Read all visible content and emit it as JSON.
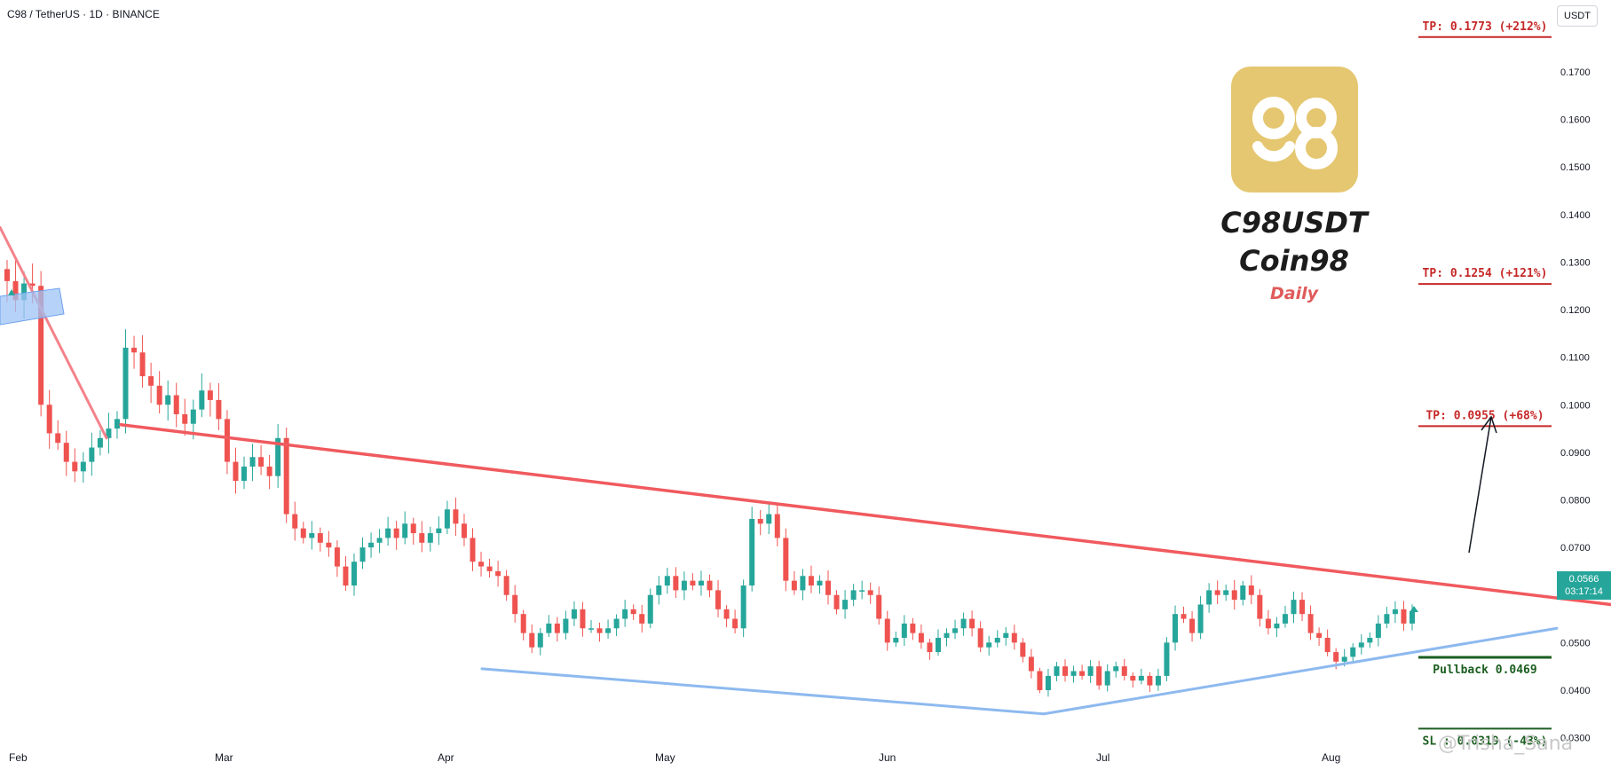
{
  "header": {
    "symbol_line": "C98 / TetherUS · 1D · BINANCE",
    "unit": "USDT"
  },
  "overlay": {
    "ticker": "C98USDT",
    "name": "Coin98",
    "timeframe": "Daily",
    "watermark": "@Trisha_Sana",
    "logo_color": "#e5c771"
  },
  "price_badge": {
    "price": "0.0566",
    "countdown": "03:17:14"
  },
  "chart_data": {
    "type": "candlestick",
    "y_axis": {
      "ticks": [
        "0.0300",
        "0.0400",
        "0.0500",
        "0.0600",
        "0.0700",
        "0.0800",
        "0.0900",
        "0.1000",
        "0.1100",
        "0.1200",
        "0.1300",
        "0.1400",
        "0.1500",
        "0.1600",
        "0.1700"
      ],
      "ylim": [
        0.0275,
        0.1795
      ]
    },
    "x_axis": {
      "ticks": [
        "Feb",
        "Mar",
        "Apr",
        "May",
        "Jun",
        "Jul",
        "Aug"
      ]
    },
    "closes": [
      0.126,
      0.122,
      0.1255,
      0.125,
      0.1,
      0.094,
      0.092,
      0.088,
      0.086,
      0.088,
      0.091,
      0.093,
      0.095,
      0.097,
      0.112,
      0.111,
      0.106,
      0.104,
      0.1,
      0.102,
      0.098,
      0.096,
      0.099,
      0.103,
      0.101,
      0.097,
      0.088,
      0.084,
      0.087,
      0.089,
      0.087,
      0.085,
      0.093,
      0.077,
      0.074,
      0.072,
      0.073,
      0.071,
      0.07,
      0.066,
      0.062,
      0.067,
      0.07,
      0.071,
      0.072,
      0.074,
      0.072,
      0.075,
      0.073,
      0.071,
      0.073,
      0.074,
      0.078,
      0.075,
      0.072,
      0.067,
      0.066,
      0.065,
      0.064,
      0.06,
      0.056,
      0.052,
      0.049,
      0.052,
      0.054,
      0.052,
      0.055,
      0.057,
      0.053,
      0.053,
      0.052,
      0.053,
      0.055,
      0.057,
      0.056,
      0.054,
      0.06,
      0.062,
      0.064,
      0.061,
      0.063,
      0.062,
      0.063,
      0.061,
      0.057,
      0.055,
      0.053,
      0.062,
      0.076,
      0.075,
      0.077,
      0.072,
      0.063,
      0.061,
      0.064,
      0.062,
      0.063,
      0.06,
      0.057,
      0.059,
      0.061,
      0.061,
      0.06,
      0.055,
      0.05,
      0.051,
      0.054,
      0.052,
      0.05,
      0.048,
      0.051,
      0.052,
      0.053,
      0.055,
      0.053,
      0.049,
      0.05,
      0.051,
      0.052,
      0.05,
      0.047,
      0.044,
      0.04,
      0.043,
      0.045,
      0.043,
      0.044,
      0.043,
      0.045,
      0.041,
      0.044,
      0.045,
      0.043,
      0.042,
      0.043,
      0.041,
      0.043,
      0.05,
      0.056,
      0.055,
      0.052,
      0.058,
      0.061,
      0.06,
      0.061,
      0.059,
      0.062,
      0.06,
      0.055,
      0.053,
      0.054,
      0.056,
      0.059,
      0.056,
      0.052,
      0.051,
      0.048,
      0.046,
      0.047,
      0.049,
      0.05,
      0.051,
      0.054,
      0.056,
      0.057,
      0.054,
      0.0566
    ],
    "trendlines": [
      {
        "name": "descending-resistance",
        "color": "#f05a5e",
        "points": [
          [
            0.0958,
            "Feb 18"
          ],
          [
            0.058,
            "Aug 17"
          ]
        ]
      },
      {
        "name": "early-downtrend",
        "color": "#f4828a",
        "points": [
          [
            0.1373,
            "Jan 22"
          ],
          [
            0.093,
            "Feb 12"
          ]
        ]
      },
      {
        "name": "lower-support",
        "color": "#8db9ef",
        "points": [
          [
            0.0445,
            "Apr 04"
          ],
          [
            0.035,
            "Jun 25"
          ]
        ]
      },
      {
        "name": "rising-support",
        "color": "#8db9ef",
        "points": [
          [
            0.035,
            "Jun 25"
          ],
          [
            0.053,
            "Aug 17"
          ]
        ]
      }
    ],
    "levels": [
      {
        "label": "TP: 0.1773 (+212%)",
        "price": 0.1773,
        "color": "#c62828"
      },
      {
        "label": "TP: 0.1254 (+121%)",
        "price": 0.1254,
        "color": "#c62828"
      },
      {
        "label": "TP: 0.0955 (+68%)",
        "price": 0.0955,
        "color": "#c62828"
      },
      {
        "label": "Pullback 0.0469",
        "price": 0.0469,
        "color": "#1b5e20"
      },
      {
        "label": "SL : 0.0319 (-43%)",
        "price": 0.0319,
        "color": "#1b5e20"
      }
    ],
    "colors": {
      "up": "#26a69a",
      "down": "#ef5350"
    }
  }
}
